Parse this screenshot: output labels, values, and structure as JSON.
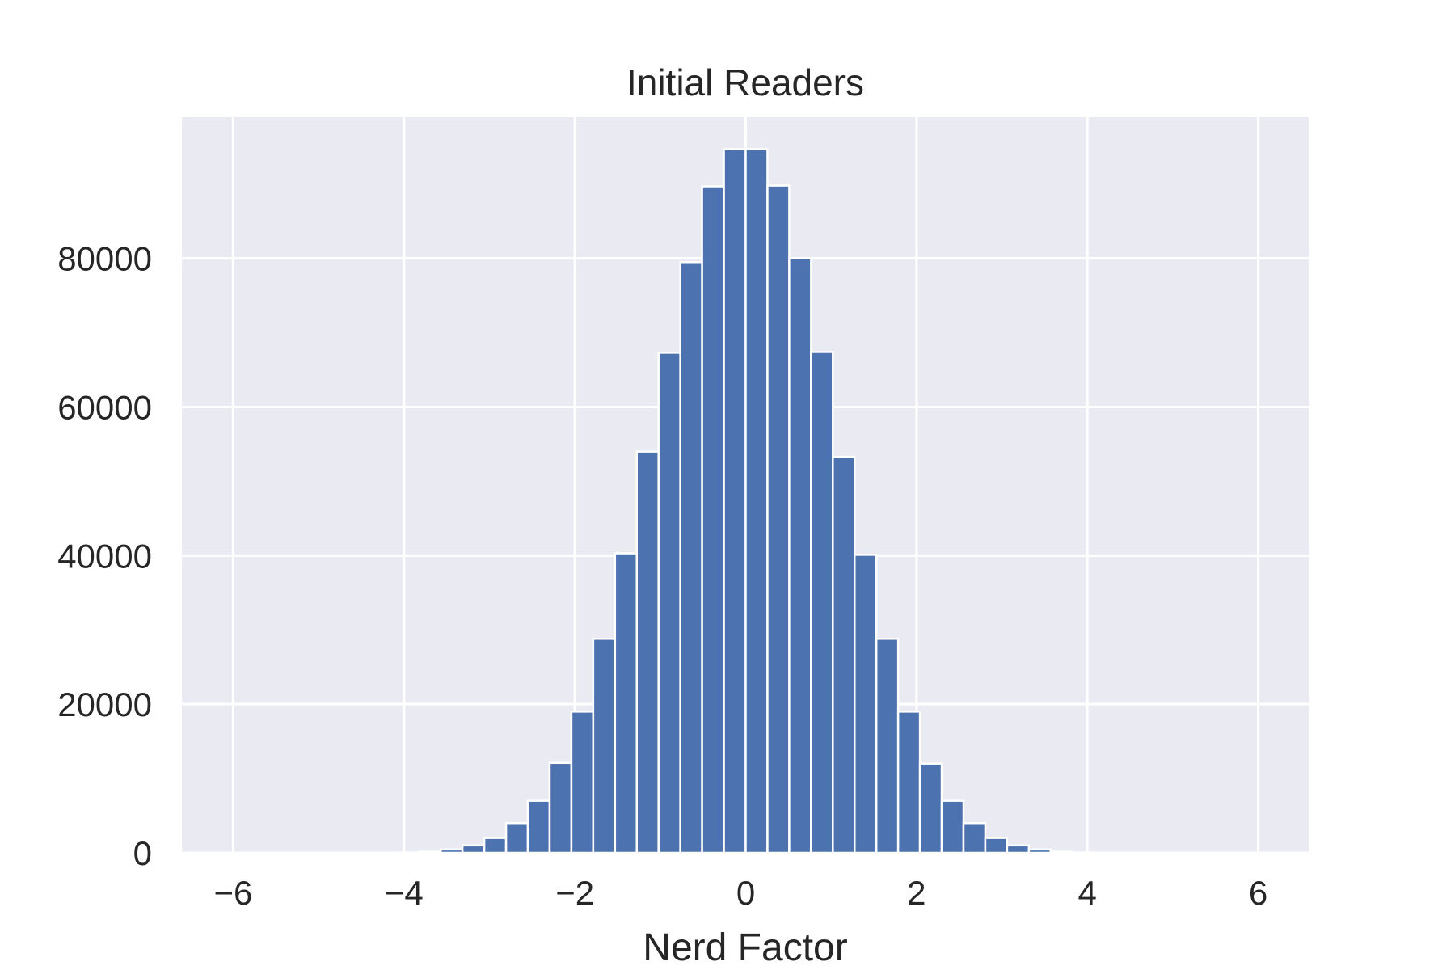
{
  "chart_data": {
    "type": "bar",
    "title": "Initial Readers",
    "xlabel": "Nerd Factor",
    "ylabel": "",
    "xlim": [
      -6.6,
      6.6
    ],
    "ylim": [
      0,
      99000
    ],
    "grid": true,
    "bin_width": 0.255,
    "x_ticks": [
      -6,
      -4,
      -2,
      0,
      2,
      4,
      6
    ],
    "x_tick_labels": [
      "−6",
      "−4",
      "−2",
      "0",
      "2",
      "4",
      "6"
    ],
    "y_ticks": [
      0,
      20000,
      40000,
      60000,
      80000
    ],
    "y_tick_labels": [
      "0",
      "20000",
      "40000",
      "60000",
      "80000"
    ],
    "series": [
      {
        "bin_starts": [
          -4.08,
          -3.825,
          -3.57,
          -3.315,
          -3.06,
          -2.805,
          -2.55,
          -2.295,
          -2.04,
          -1.785,
          -1.53,
          -1.275,
          -1.02,
          -0.765,
          -0.51,
          -0.255,
          0.0,
          0.255,
          0.51,
          0.765,
          1.02,
          1.275,
          1.53,
          1.785,
          2.04,
          2.295,
          2.55,
          2.805,
          3.06,
          3.315,
          3.57,
          3.825
        ],
        "values": [
          50,
          150,
          450,
          1000,
          2000,
          4000,
          7000,
          12100,
          19000,
          28800,
          40300,
          54000,
          67300,
          79500,
          89700,
          94700,
          94700,
          89800,
          80000,
          67400,
          53300,
          40100,
          28800,
          19000,
          12000,
          7000,
          4000,
          2000,
          1000,
          450,
          150,
          50
        ]
      }
    ],
    "colors": {
      "bar": "#4c72b0",
      "background": "#eaeaf2",
      "grid": "#ffffff",
      "text": "#262626"
    }
  }
}
